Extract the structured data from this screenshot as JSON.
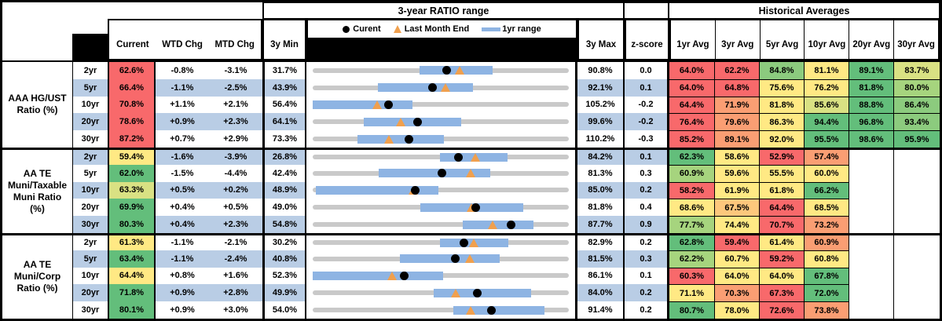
{
  "table": {
    "top_headers": {
      "range_title": "3-year RATIO range",
      "hist_title": "Historical Averages"
    },
    "col_headers": {
      "current": "Current",
      "wtd": "WTD Chg",
      "mtd": "MTD Chg",
      "min": "3y Min",
      "max": "3y Max",
      "z": "z-score",
      "avgs": [
        "1yr Avg",
        "3yr Avg",
        "5yr Avg",
        "10yr Avg",
        "20yr Avg",
        "30yr Avg"
      ]
    },
    "legend": {
      "current": "Curent",
      "last_month": "Last Month End",
      "range": "1yr range"
    }
  },
  "palette": {
    "r": "#F8696B",
    "o": "#FA9E73",
    "yo": "#FDC77C",
    "y": "#FFE984",
    "yg": "#D9E183",
    "lg": "#A6D47E",
    "mg": "#8CCB7E",
    "g": "#63BE7B",
    "stripe": "#B9CDE5",
    "bar": "#8EB4E3",
    "track": "#C9C9C9",
    "marker_triangle": "#F0A04E",
    "marker_dot": "#000000"
  },
  "chart_data": {
    "type": "table",
    "note": "Each row has an inline range chart: gray track spans 3y Min..3y Max, blue bar is 1yr range, black dot = current, orange triangle = last month end (current - MTD chg).",
    "groups": [
      {
        "label": "AAA HG/UST\nRatio (%)",
        "rows": [
          {
            "tenor": "2yr",
            "current": "62.6%",
            "cc": "r",
            "wtd": "-0.8%",
            "mtd": "-3.1%",
            "min": "31.7%",
            "max": "90.8%",
            "z": "0.0",
            "range": {
              "min": 31.7,
              "max": 90.8,
              "cur": 62.6,
              "lme": 65.7,
              "lo": 56.3,
              "hi": 73.2
            },
            "avgs": [
              [
                "64.0%",
                "r"
              ],
              [
                "62.2%",
                "r"
              ],
              [
                "84.8%",
                "mg"
              ],
              [
                "81.1%",
                "y"
              ],
              [
                "89.1%",
                "g"
              ],
              [
                "83.7%",
                "yg"
              ]
            ]
          },
          {
            "tenor": "5yr",
            "current": "66.4%",
            "cc": "r",
            "wtd": "-1.1%",
            "mtd": "-2.5%",
            "min": "43.9%",
            "max": "92.1%",
            "z": "0.1",
            "range": {
              "min": 43.9,
              "max": 92.1,
              "cur": 66.4,
              "lme": 68.9,
              "lo": 56.1,
              "hi": 74.1
            },
            "avgs": [
              [
                "64.0%",
                "r"
              ],
              [
                "64.8%",
                "r"
              ],
              [
                "75.6%",
                "y"
              ],
              [
                "76.2%",
                "y"
              ],
              [
                "81.8%",
                "g"
              ],
              [
                "80.0%",
                "lg"
              ]
            ]
          },
          {
            "tenor": "10yr",
            "current": "70.8%",
            "cc": "r",
            "wtd": "+1.1%",
            "mtd": "+2.1%",
            "min": "56.4%",
            "max": "105.2%",
            "z": "-0.2",
            "range": {
              "min": 56.4,
              "max": 105.2,
              "cur": 70.8,
              "lme": 68.7,
              "lo": 56.4,
              "hi": 75.4
            },
            "avgs": [
              [
                "64.4%",
                "r"
              ],
              [
                "71.9%",
                "o"
              ],
              [
                "81.8%",
                "y"
              ],
              [
                "85.6%",
                "yg"
              ],
              [
                "88.8%",
                "g"
              ],
              [
                "86.4%",
                "mg"
              ]
            ]
          },
          {
            "tenor": "20yr",
            "current": "78.6%",
            "cc": "r",
            "wtd": "+0.9%",
            "mtd": "+2.3%",
            "min": "64.1%",
            "max": "99.6%",
            "z": "-0.2",
            "range": {
              "min": 64.1,
              "max": 99.6,
              "cur": 78.6,
              "lme": 76.3,
              "lo": 71.2,
              "hi": 84.7
            },
            "avgs": [
              [
                "76.4%",
                "r"
              ],
              [
                "79.6%",
                "o"
              ],
              [
                "86.3%",
                "y"
              ],
              [
                "94.4%",
                "g"
              ],
              [
                "96.8%",
                "g"
              ],
              [
                "93.4%",
                "mg"
              ]
            ]
          },
          {
            "tenor": "30yr",
            "current": "87.2%",
            "cc": "r",
            "wtd": "+0.7%",
            "mtd": "+2.9%",
            "min": "73.3%",
            "max": "110.2%",
            "z": "-0.3",
            "range": {
              "min": 73.3,
              "max": 110.2,
              "cur": 87.2,
              "lme": 84.3,
              "lo": 79.8,
              "hi": 92.2
            },
            "avgs": [
              [
                "85.2%",
                "r"
              ],
              [
                "89.1%",
                "o"
              ],
              [
                "92.0%",
                "y"
              ],
              [
                "95.5%",
                "g"
              ],
              [
                "98.6%",
                "g"
              ],
              [
                "95.9%",
                "g"
              ]
            ]
          }
        ]
      },
      {
        "label": "AA TE\nMuni/Taxable\nMuni Ratio\n(%)",
        "rows": [
          {
            "tenor": "2yr",
            "current": "59.4%",
            "cc": "y",
            "wtd": "-1.6%",
            "mtd": "-3.9%",
            "min": "26.8%",
            "max": "84.2%",
            "z": "0.1",
            "range": {
              "min": 26.8,
              "max": 84.2,
              "cur": 59.4,
              "lme": 63.3,
              "lo": 55.3,
              "hi": 70.4
            },
            "avgs": [
              [
                "62.3%",
                "g"
              ],
              [
                "58.6%",
                "y"
              ],
              [
                "52.9%",
                "r"
              ],
              [
                "57.4%",
                "o"
              ],
              [
                "",
                ""
              ],
              [
                "",
                ""
              ]
            ]
          },
          {
            "tenor": "5yr",
            "current": "62.0%",
            "cc": "g",
            "wtd": "-1.5%",
            "mtd": "-4.4%",
            "min": "42.4%",
            "max": "81.3%",
            "z": "0.3",
            "range": {
              "min": 42.4,
              "max": 81.3,
              "cur": 62.0,
              "lme": 66.4,
              "lo": 52.4,
              "hi": 69.4
            },
            "avgs": [
              [
                "60.9%",
                "lg"
              ],
              [
                "59.6%",
                "y"
              ],
              [
                "55.5%",
                "y"
              ],
              [
                "60.0%",
                "y"
              ],
              [
                "",
                ""
              ],
              [
                "",
                ""
              ]
            ]
          },
          {
            "tenor": "10yr",
            "current": "63.3%",
            "cc": "yg",
            "wtd": "+0.5%",
            "mtd": "+0.2%",
            "min": "48.9%",
            "max": "85.0%",
            "z": "0.2",
            "range": {
              "min": 48.9,
              "max": 85.0,
              "cur": 63.3,
              "lme": 63.1,
              "lo": 49.3,
              "hi": 66.6
            },
            "avgs": [
              [
                "58.2%",
                "r"
              ],
              [
                "61.9%",
                "y"
              ],
              [
                "61.8%",
                "y"
              ],
              [
                "66.2%",
                "g"
              ],
              [
                "",
                ""
              ],
              [
                "",
                ""
              ]
            ]
          },
          {
            "tenor": "20yr",
            "current": "69.9%",
            "cc": "g",
            "wtd": "+0.4%",
            "mtd": "+0.5%",
            "min": "49.0%",
            "max": "81.8%",
            "z": "0.4",
            "range": {
              "min": 49.0,
              "max": 81.8,
              "cur": 69.9,
              "lme": 69.4,
              "lo": 62.8,
              "hi": 76.0
            },
            "avgs": [
              [
                "68.6%",
                "y"
              ],
              [
                "67.5%",
                "yo"
              ],
              [
                "64.4%",
                "r"
              ],
              [
                "68.5%",
                "y"
              ],
              [
                "",
                ""
              ],
              [
                "",
                ""
              ]
            ]
          },
          {
            "tenor": "30yr",
            "current": "80.3%",
            "cc": "g",
            "wtd": "+0.4%",
            "mtd": "+2.3%",
            "min": "54.8%",
            "max": "87.7%",
            "z": "0.9",
            "range": {
              "min": 54.8,
              "max": 87.7,
              "cur": 80.3,
              "lme": 78.0,
              "lo": 74.1,
              "hi": 83.2
            },
            "avgs": [
              [
                "77.7%",
                "lg"
              ],
              [
                "74.4%",
                "y"
              ],
              [
                "70.7%",
                "r"
              ],
              [
                "73.2%",
                "o"
              ],
              [
                "",
                ""
              ],
              [
                "",
                ""
              ]
            ]
          }
        ]
      },
      {
        "label": "AA TE\nMuni/Corp\nRatio (%)",
        "rows": [
          {
            "tenor": "2yr",
            "current": "61.3%",
            "cc": "y",
            "wtd": "-1.1%",
            "mtd": "-2.1%",
            "min": "30.2%",
            "max": "82.9%",
            "z": "0.2",
            "range": {
              "min": 30.2,
              "max": 82.9,
              "cur": 61.3,
              "lme": 63.4,
              "lo": 56.4,
              "hi": 70.5
            },
            "avgs": [
              [
                "62.8%",
                "g"
              ],
              [
                "59.4%",
                "r"
              ],
              [
                "61.4%",
                "y"
              ],
              [
                "60.9%",
                "o"
              ],
              [
                "",
                ""
              ],
              [
                "",
                ""
              ]
            ]
          },
          {
            "tenor": "5yr",
            "current": "63.4%",
            "cc": "g",
            "wtd": "-1.1%",
            "mtd": "-2.4%",
            "min": "40.8%",
            "max": "81.5%",
            "z": "0.3",
            "range": {
              "min": 40.8,
              "max": 81.5,
              "cur": 63.4,
              "lme": 65.8,
              "lo": 54.7,
              "hi": 70.5
            },
            "avgs": [
              [
                "62.2%",
                "lg"
              ],
              [
                "60.7%",
                "y"
              ],
              [
                "59.2%",
                "r"
              ],
              [
                "60.8%",
                "y"
              ],
              [
                "",
                ""
              ],
              [
                "",
                ""
              ]
            ]
          },
          {
            "tenor": "10yr",
            "current": "64.4%",
            "cc": "y",
            "wtd": "+0.8%",
            "mtd": "+1.6%",
            "min": "52.3%",
            "max": "86.1%",
            "z": "0.1",
            "range": {
              "min": 52.3,
              "max": 86.1,
              "cur": 64.4,
              "lme": 62.8,
              "lo": 52.3,
              "hi": 69.5
            },
            "avgs": [
              [
                "60.3%",
                "r"
              ],
              [
                "64.0%",
                "y"
              ],
              [
                "64.0%",
                "y"
              ],
              [
                "67.8%",
                "g"
              ],
              [
                "",
                ""
              ],
              [
                "",
                ""
              ]
            ]
          },
          {
            "tenor": "20yr",
            "current": "71.8%",
            "cc": "g",
            "wtd": "+0.9%",
            "mtd": "+2.8%",
            "min": "49.9%",
            "max": "84.0%",
            "z": "0.2",
            "range": {
              "min": 49.9,
              "max": 84.0,
              "cur": 71.8,
              "lme": 69.0,
              "lo": 66.0,
              "hi": 79.0
            },
            "avgs": [
              [
                "71.1%",
                "y"
              ],
              [
                "70.3%",
                "o"
              ],
              [
                "67.3%",
                "r"
              ],
              [
                "72.0%",
                "g"
              ],
              [
                "",
                ""
              ],
              [
                "",
                ""
              ]
            ]
          },
          {
            "tenor": "30yr",
            "current": "80.1%",
            "cc": "g",
            "wtd": "+0.9%",
            "mtd": "+3.0%",
            "min": "54.0%",
            "max": "91.4%",
            "z": "0.2",
            "range": {
              "min": 54.0,
              "max": 91.4,
              "cur": 80.1,
              "lme": 77.1,
              "lo": 74.5,
              "hi": 87.8
            },
            "avgs": [
              [
                "80.7%",
                "g"
              ],
              [
                "78.0%",
                "y"
              ],
              [
                "72.6%",
                "r"
              ],
              [
                "73.8%",
                "o"
              ],
              [
                "",
                ""
              ],
              [
                "",
                ""
              ]
            ]
          }
        ]
      }
    ]
  }
}
